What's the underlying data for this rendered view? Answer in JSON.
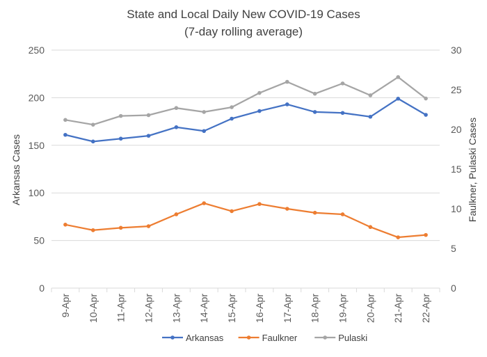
{
  "chart_data": {
    "type": "line",
    "title": "State and Local Daily New COVID-19 Cases",
    "subtitle": "(7-day rolling average)",
    "categories": [
      "9-Apr",
      "10-Apr",
      "11-Apr",
      "12-Apr",
      "13-Apr",
      "14-Apr",
      "15-Apr",
      "16-Apr",
      "17-Apr",
      "18-Apr",
      "19-Apr",
      "20-Apr",
      "21-Apr",
      "22-Apr"
    ],
    "ylabel_left": "Arkansas Cases",
    "ylabel_right": "Faulkner, Pulaski Cases",
    "ylim_left": [
      0,
      250
    ],
    "ylim_right": [
      0,
      30
    ],
    "yticks_left": [
      "0",
      "50",
      "100",
      "150",
      "200",
      "250"
    ],
    "yticks_right": [
      "0",
      "5",
      "10",
      "15",
      "20",
      "25",
      "30"
    ],
    "grid": true,
    "legend_position": "bottom",
    "series": [
      {
        "name": "Arkansas",
        "axis": "left",
        "color": "#4472c4",
        "values": [
          161,
          154,
          157,
          160,
          169,
          165,
          178,
          186,
          193,
          185,
          184,
          180,
          199,
          182
        ]
      },
      {
        "name": "Faulkner",
        "axis": "right",
        "color": "#ed7d31",
        "values": [
          8.0,
          7.3,
          7.6,
          7.8,
          9.3,
          10.7,
          9.7,
          10.6,
          10.0,
          9.5,
          9.3,
          7.7,
          6.4,
          6.7
        ]
      },
      {
        "name": "Pulaski",
        "axis": "right",
        "color": "#a5a5a5",
        "values": [
          21.2,
          20.6,
          21.7,
          21.8,
          22.7,
          22.2,
          22.8,
          24.6,
          26.0,
          24.5,
          25.8,
          24.3,
          26.6,
          23.9
        ]
      }
    ]
  }
}
